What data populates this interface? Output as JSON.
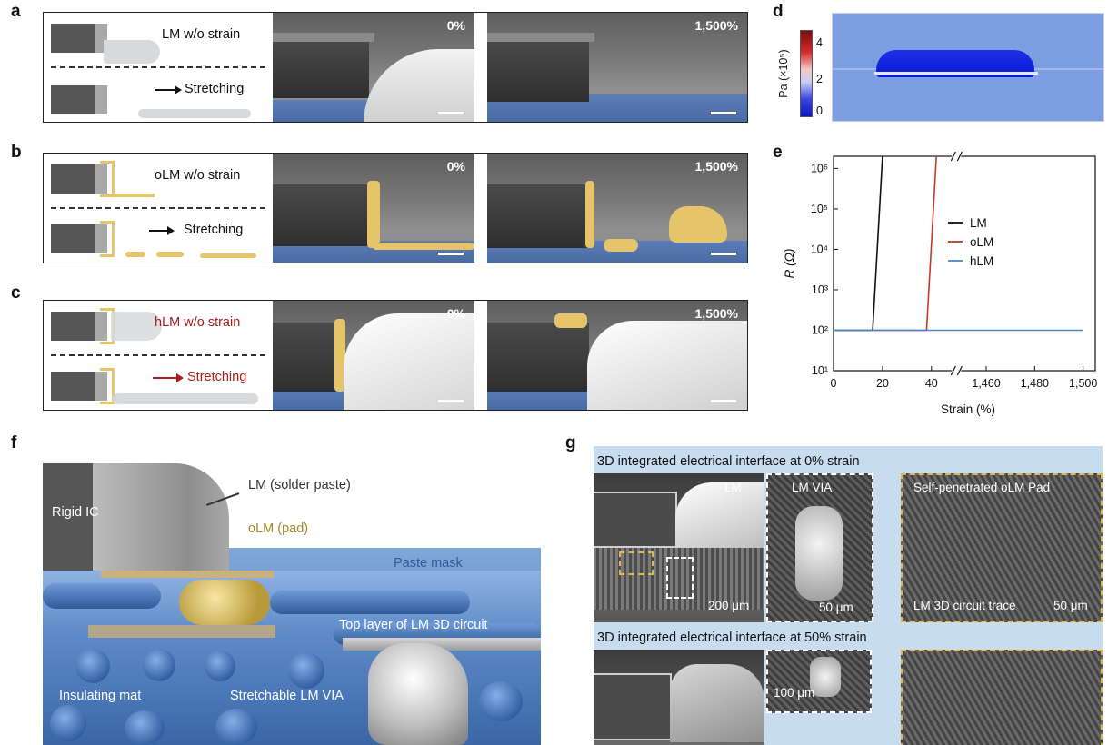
{
  "panel_labels": {
    "a": "a",
    "b": "b",
    "c": "c",
    "d": "d",
    "e": "e",
    "f": "f",
    "g": "g"
  },
  "row_a": {
    "schematic_top": "LM w/o strain",
    "schematic_bottom": "Stretching",
    "sem_left_pct": "0%",
    "sem_right_pct": "1,500%"
  },
  "row_b": {
    "schematic_top": "oLM w/o strain",
    "schematic_bottom": "Stretching",
    "sem_left_pct": "0%",
    "sem_right_pct": "1,500%"
  },
  "row_c": {
    "schematic_top": "hLM w/o strain",
    "schematic_bottom": "Stretching",
    "sem_left_pct": "0%",
    "sem_right_pct": "1,500%"
  },
  "panel_d": {
    "colorbar_label": "Pa (×10⁵)",
    "colorbar_ticks": [
      "4",
      "2",
      "0"
    ]
  },
  "colors": {
    "LM": "#111111",
    "oLM": "#c0392b",
    "hLM": "#4a86c5",
    "gold": "#e6c56a",
    "red_text": "#b01a1a"
  },
  "chart_data": {
    "type": "line",
    "xlabel": "Strain (%)",
    "ylabel": "R (Ω)",
    "yscale": "log",
    "ylim": [
      10,
      2000000
    ],
    "x_ticks": [
      "0",
      "20",
      "40",
      "1,460",
      "1,480",
      "1,500"
    ],
    "y_ticks": [
      "10¹",
      "10²",
      "10³",
      "10⁴",
      "10⁵",
      "10⁶"
    ],
    "x_break": "after 40 (//)",
    "legend": {
      "placement": "center-left",
      "entries": [
        "LM",
        "oLM",
        "hLM"
      ]
    },
    "series": [
      {
        "name": "LM",
        "color": "#111111",
        "x": [
          0,
          16,
          16,
          20
        ],
        "y": [
          100,
          100,
          100,
          2000000
        ]
      },
      {
        "name": "oLM",
        "color": "#c0392b",
        "x": [
          16,
          38,
          38,
          42
        ],
        "y": [
          100,
          100,
          100,
          2000000
        ]
      },
      {
        "name": "hLM",
        "color": "#4a86c5",
        "x": [
          0,
          1500
        ],
        "y": [
          100,
          100
        ]
      }
    ]
  },
  "panel_f": {
    "labels": {
      "rigid_ic": "Rigid IC",
      "lm_solder": "LM (solder paste)",
      "olm_pad": "oLM (pad)",
      "paste_mask": "Paste mask",
      "top_layer": "Top layer of LM 3D circuit",
      "insulating_mat": "Insulating mat",
      "stretchable_via": "Stretchable LM VIA"
    }
  },
  "panel_g": {
    "title_0": "3D integrated electrical interface at 0% strain",
    "title_50": "3D integrated electrical interface at 50% strain",
    "img1_label": "LM",
    "img1_scale": "200 μm",
    "img2_label": "LM VIA",
    "img2_scale": "50 μm",
    "img3_label_top": "Self-penetrated oLM Pad",
    "img3_label_bottom": "LM 3D circuit trace",
    "img3_scale": "50 μm",
    "img5_scale": "100 μm"
  }
}
